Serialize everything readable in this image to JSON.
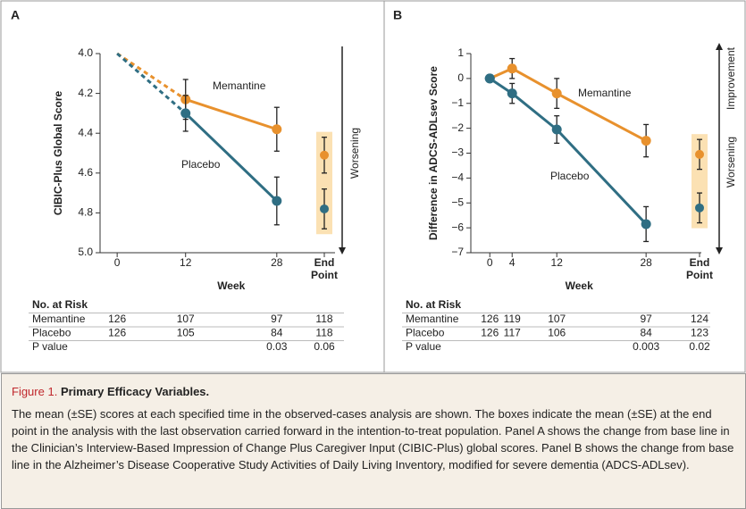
{
  "chart_data": [
    {
      "type": "line",
      "panel": "A",
      "ylabel": "CIBIC-Plus Global Score",
      "xlabel": "Week",
      "x": [
        0,
        12,
        28
      ],
      "xlim": [
        -3,
        39
      ],
      "xticks": [
        0,
        12,
        28
      ],
      "ylim": [
        5,
        4
      ],
      "yticks": [
        {
          "value": 4,
          "label": "4.0"
        },
        4.2,
        4.4,
        4.6,
        4.8,
        {
          "value": 5,
          "label": "5.0"
        }
      ],
      "first_segment_dashed": true,
      "first_marker": false,
      "end_point_label": "End Point",
      "arrow_labels": [
        {
          "text": "Worsening",
          "direction": "down"
        }
      ],
      "series": [
        {
          "name": "Memantine",
          "color": "#e8912d",
          "values": [
            4.0,
            4.23,
            4.38
          ],
          "errors": [
            null,
            0.1,
            0.11
          ],
          "end_value": 4.51,
          "end_error": 0.09
        },
        {
          "name": "Placebo",
          "color": "#2f6e83",
          "values": [
            4.0,
            4.3,
            4.74
          ],
          "errors": [
            null,
            0.09,
            0.12
          ],
          "end_value": 4.78,
          "end_error": 0.1
        }
      ],
      "risk_table": {
        "title": "No. at Risk",
        "rows": [
          [
            "Memantine",
            126,
            107,
            97,
            118
          ],
          [
            "Placebo",
            126,
            105,
            84,
            118
          ],
          [
            "P value",
            null,
            null,
            0.03,
            0.06
          ]
        ]
      }
    },
    {
      "type": "line",
      "panel": "B",
      "ylabel": "Difference in ADCS-ADLsev Score",
      "xlabel": "Week",
      "x": [
        0,
        4,
        12,
        28
      ],
      "xlim": [
        -3.4,
        38.7
      ],
      "xticks": [
        0,
        4,
        12,
        28
      ],
      "ylim": [
        -7,
        1
      ],
      "yticks": [
        {
          "value": -7,
          "label": "−7"
        },
        {
          "value": -6,
          "label": "−6"
        },
        {
          "value": -5,
          "label": "−5"
        },
        {
          "value": -4,
          "label": "−4"
        },
        {
          "value": -3,
          "label": "−3"
        },
        {
          "value": -2,
          "label": "−2"
        },
        {
          "value": -1,
          "label": "−1"
        },
        0,
        1
      ],
      "first_segment_dashed": false,
      "first_marker": true,
      "end_point_label": "End Point",
      "arrow_labels": [
        {
          "text": "Improvement",
          "direction": "up"
        },
        {
          "text": "Worsening",
          "direction": "down"
        }
      ],
      "series": [
        {
          "name": "Memantine",
          "color": "#e8912d",
          "values": [
            0,
            0.4,
            -0.6,
            -2.5
          ],
          "errors": [
            null,
            0.4,
            0.6,
            0.65
          ],
          "end_value": -3.05,
          "end_error": 0.6
        },
        {
          "name": "Placebo",
          "color": "#2f6e83",
          "values": [
            0,
            -0.6,
            -2.05,
            -5.85
          ],
          "errors": [
            null,
            0.4,
            0.55,
            0.7
          ],
          "end_value": -5.2,
          "end_error": 0.6
        }
      ],
      "risk_table": {
        "title": "No. at Risk",
        "rows": [
          [
            "Memantine",
            126,
            119,
            107,
            97,
            124
          ],
          [
            "Placebo",
            126,
            117,
            106,
            84,
            123
          ],
          [
            "P value",
            null,
            null,
            null,
            0.003,
            0.02
          ]
        ]
      }
    }
  ],
  "caption": {
    "label": "Figure 1.",
    "title": "Primary Efficacy Variables.",
    "text": "The mean (±SE) scores at each specified time in the observed-cases analysis are shown. The boxes indicate the mean (±SE) at the end point in the analysis with the last observation carried forward in the intention-to-treat population. Panel A shows the change from base line in the Clinician’s Interview-Based Impression of Change Plus Caregiver Input (CIBIC-Plus) global scores. Panel B shows the change from base line in the Alzheimer’s Disease Cooperative Study Activities of Daily Living Inventory, modified for severe dementia (ADCS-ADLsev)."
  }
}
